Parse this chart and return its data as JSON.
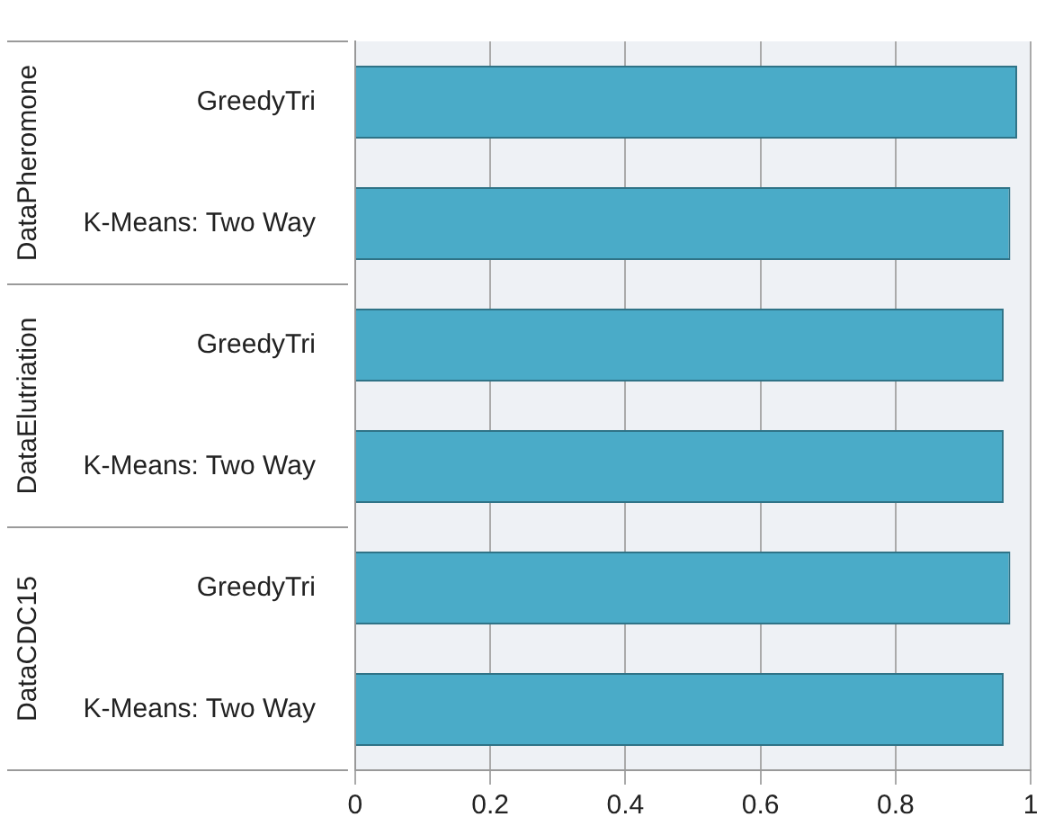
{
  "chart_data": {
    "type": "bar",
    "orientation": "horizontal",
    "categories": [
      "GreedyTri",
      "K-Means: Two Way",
      "GreedyTri",
      "K-Means: Two Way",
      "GreedyTri",
      "K-Means: Two Way"
    ],
    "values": [
      0.98,
      0.97,
      0.96,
      0.96,
      0.97,
      0.96
    ],
    "color": "#4aabc8",
    "xlim": [
      0,
      1
    ],
    "xticks": [
      0,
      0.2,
      0.4,
      0.6,
      0.8,
      1
    ],
    "grid": "x",
    "annotations": [
      "DataPheromone",
      "DataElutriation",
      "DataCDC15"
    ]
  }
}
